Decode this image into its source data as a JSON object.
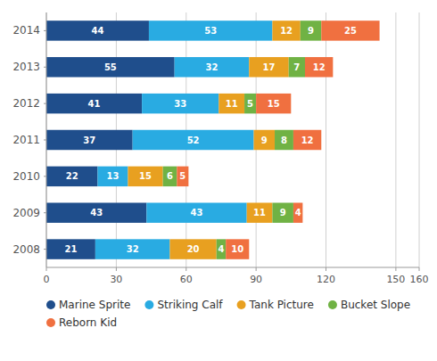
{
  "chart_data": {
    "type": "bar",
    "orientation": "horizontal",
    "stacked": true,
    "data_labels": true,
    "grid": true,
    "legend": "bottom",
    "categories": [
      "2008",
      "2009",
      "2010",
      "2011",
      "2012",
      "2013",
      "2014"
    ],
    "series": [
      {
        "name": "Marine Sprite",
        "color": "#1f4e8c",
        "values": [
          21,
          43,
          22,
          37,
          41,
          55,
          44
        ]
      },
      {
        "name": "Striking Calf",
        "color": "#29abe2",
        "values": [
          32,
          43,
          13,
          52,
          33,
          32,
          53
        ]
      },
      {
        "name": "Tank Picture",
        "color": "#e8a020",
        "values": [
          20,
          11,
          15,
          9,
          11,
          17,
          12
        ]
      },
      {
        "name": "Bucket Slope",
        "color": "#70b244",
        "values": [
          4,
          9,
          6,
          8,
          5,
          7,
          9
        ]
      },
      {
        "name": "Reborn Kid",
        "color": "#f07040",
        "values": [
          10,
          4,
          5,
          12,
          15,
          12,
          25
        ]
      }
    ],
    "xlim": [
      0,
      160
    ],
    "xticks": [
      0,
      30,
      60,
      90,
      120,
      150,
      160
    ]
  }
}
